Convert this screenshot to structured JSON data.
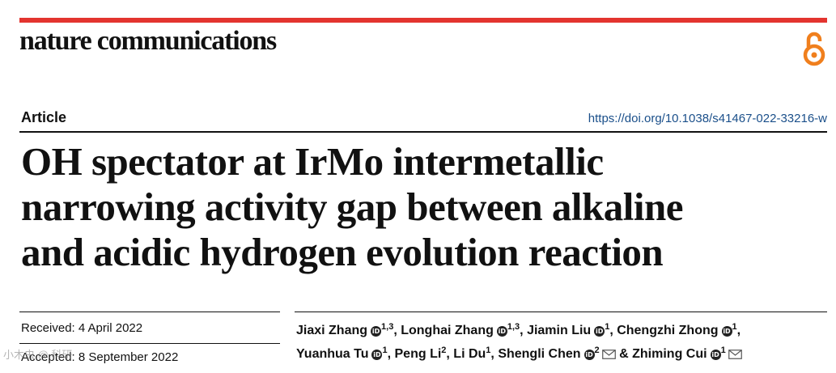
{
  "colors": {
    "accent": "#e3342f",
    "oa_icon": "#f07f1d",
    "doi_link": "#1a4f8a"
  },
  "header": {
    "journal": "nature communications",
    "oa_icon": "open-access-icon"
  },
  "article": {
    "type": "Article",
    "doi": "https://doi.org/10.1038/s41467-022-33216-w",
    "title_lines": [
      "OH spectator at IrMo intermetallic",
      "narrowing activity gap between alkaline",
      "and acidic hydrogen evolution reaction"
    ]
  },
  "dates": {
    "received": "Received: 4 April 2022",
    "accepted": "Accepted: 8 September 2022"
  },
  "authors": [
    {
      "name": "Jiaxi Zhang",
      "aff": "1,3",
      "sep": ", "
    },
    {
      "name": "Longhai Zhang",
      "aff": "1,3",
      "sep": ", "
    },
    {
      "name": "Jiamin Liu",
      "aff": "1",
      "sep": ", "
    },
    {
      "name": "Chengzhi Zhong",
      "aff": "1",
      "sep": ","
    },
    {
      "name": "Yuanhua Tu",
      "aff": "1",
      "sep": ", "
    },
    {
      "name": "Peng Li",
      "aff": "2",
      "sep": ", "
    },
    {
      "name": "Li Du",
      "aff": "1",
      "sep": ", "
    },
    {
      "name": "Shengli Chen",
      "aff": "2",
      "sep": " & "
    },
    {
      "name": "Zhiming Cui",
      "aff": "1",
      "sep": ""
    }
  ],
  "orcid_glyph": "iD",
  "watermark": "小木虫 @ 科研"
}
